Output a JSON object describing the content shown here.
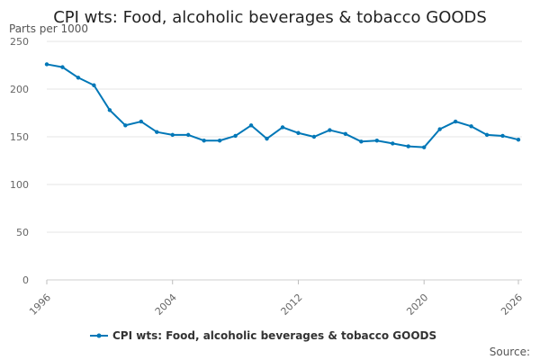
{
  "chart_data": {
    "type": "line",
    "title": "CPI wts: Food, alcoholic beverages & tobacco GOODS",
    "units_label": "Parts per 1000",
    "xlabel": "",
    "ylabel": "",
    "x": [
      1996,
      1997,
      1998,
      1999,
      2000,
      2001,
      2002,
      2003,
      2004,
      2005,
      2006,
      2007,
      2008,
      2009,
      2010,
      2011,
      2012,
      2013,
      2014,
      2015,
      2016,
      2017,
      2018,
      2019,
      2020,
      2021,
      2022,
      2023,
      2024,
      2025,
      2026
    ],
    "series": [
      {
        "name": "CPI wts: Food, alcoholic beverages & tobacco GOODS",
        "color": "#0077b7",
        "values": [
          226,
          223,
          212,
          204,
          178,
          162,
          166,
          155,
          152,
          152,
          146,
          146,
          151,
          162,
          148,
          160,
          154,
          150,
          157,
          153,
          145,
          146,
          143,
          140,
          139,
          158,
          166,
          161,
          152,
          151,
          147
        ]
      }
    ],
    "xlim": [
      1996,
      2026
    ],
    "ylim": [
      0,
      250
    ],
    "x_ticks": [
      "1996",
      "2004",
      "2012",
      "2020",
      "2026"
    ],
    "y_ticks": [
      "0",
      "50",
      "100",
      "150",
      "200",
      "250"
    ],
    "grid": true,
    "legend_position": "bottom",
    "source_label": "Source:"
  }
}
